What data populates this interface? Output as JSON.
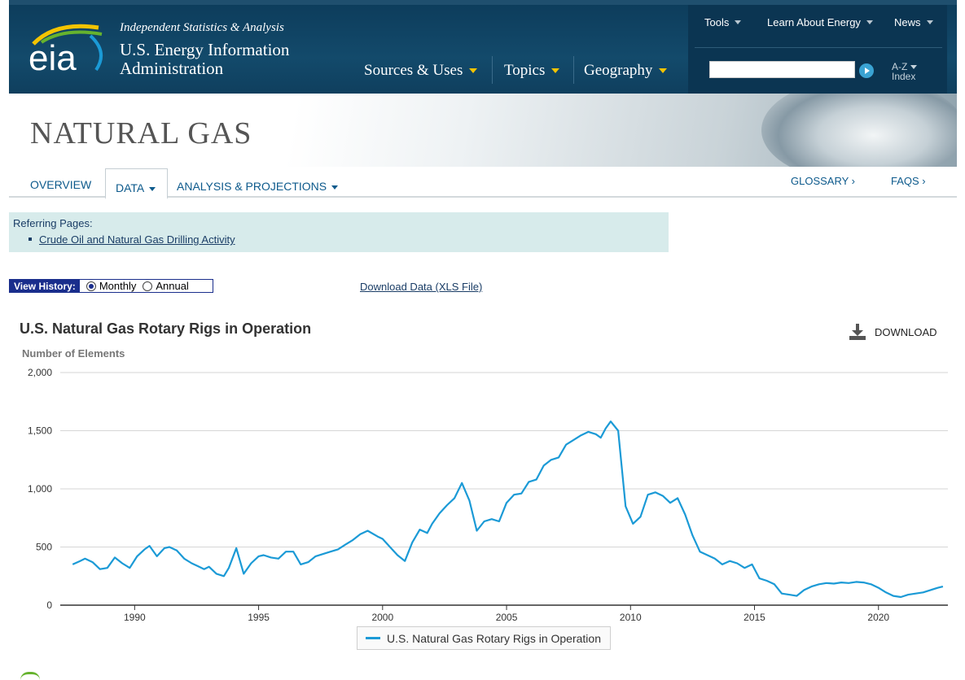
{
  "header": {
    "logo_text": "eia",
    "tagline": "Independent Statistics & Analysis",
    "agency_line1": "U.S. Energy Information",
    "agency_line2": "Administration",
    "main_nav": [
      "Sources & Uses",
      "Topics",
      "Geography"
    ],
    "tool_nav": [
      "Tools",
      "Learn About Energy",
      "News"
    ],
    "search_value": "",
    "az_line1": "A-Z",
    "az_line2": "Index"
  },
  "banner": {
    "title": "NATURAL GAS"
  },
  "subnav": {
    "overview": "OVERVIEW",
    "data": "DATA",
    "analysis": "ANALYSIS & PROJECTIONS",
    "glossary": "GLOSSARY ›",
    "faqs": "FAQS ›"
  },
  "referring": {
    "label": "Referring Pages:",
    "link": "Crude Oil and Natural Gas Drilling Activity"
  },
  "history": {
    "label": "View History:",
    "monthly": "Monthly",
    "annual": "Annual",
    "selected": "Monthly"
  },
  "download_data": "Download Data (XLS File)",
  "download_button": "DOWNLOAD",
  "colors": {
    "header": "#134a6b",
    "line": "#1b9ad6",
    "accent": "#f4c400"
  },
  "chart_data": {
    "type": "line",
    "title": "U.S. Natural Gas Rotary Rigs in Operation",
    "ylabel": "Number of Elements",
    "xlabel": "",
    "ylim": [
      0,
      2000
    ],
    "yticks": [
      0,
      500,
      1000,
      1500,
      2000
    ],
    "ytick_labels": [
      "0",
      "500",
      "1,000",
      "1,500",
      "2,000"
    ],
    "xticks": [
      1990,
      1995,
      2000,
      2005,
      2010,
      2015,
      2020
    ],
    "grid": true,
    "legend_position": "bottom",
    "series": [
      {
        "name": "U.S. Natural Gas Rotary Rigs in Operation",
        "x": [
          1987.5,
          1987.8,
          1988.0,
          1988.3,
          1988.6,
          1988.9,
          1989.2,
          1989.5,
          1989.8,
          1990.1,
          1990.4,
          1990.6,
          1990.9,
          1991.2,
          1991.4,
          1991.7,
          1992.0,
          1992.3,
          1992.6,
          1992.8,
          1993.0,
          1993.3,
          1993.6,
          1993.8,
          1994.1,
          1994.4,
          1994.7,
          1995.0,
          1995.2,
          1995.5,
          1995.8,
          1996.1,
          1996.4,
          1996.7,
          1997.0,
          1997.3,
          1997.6,
          1997.9,
          1998.2,
          1998.5,
          1998.8,
          1999.1,
          1999.4,
          1999.8,
          2000.0,
          2000.3,
          2000.6,
          2000.9,
          2001.2,
          2001.5,
          2001.8,
          2002.0,
          2002.3,
          2002.6,
          2002.9,
          2003.2,
          2003.5,
          2003.8,
          2004.1,
          2004.4,
          2004.7,
          2005.0,
          2005.3,
          2005.6,
          2005.9,
          2006.2,
          2006.5,
          2006.8,
          2007.1,
          2007.4,
          2007.7,
          2008.0,
          2008.3,
          2008.6,
          2008.8,
          2009.0,
          2009.2,
          2009.5,
          2009.8,
          2010.1,
          2010.4,
          2010.7,
          2011.0,
          2011.3,
          2011.6,
          2011.9,
          2012.2,
          2012.5,
          2012.8,
          2013.1,
          2013.4,
          2013.7,
          2014.0,
          2014.3,
          2014.6,
          2014.9,
          2015.2,
          2015.5,
          2015.8,
          2016.1,
          2016.4,
          2016.7,
          2017.0,
          2017.3,
          2017.6,
          2017.9,
          2018.2,
          2018.5,
          2018.8,
          2019.1,
          2019.4,
          2019.7,
          2020.0,
          2020.3,
          2020.6,
          2020.9,
          2021.2,
          2021.5,
          2021.8,
          2022.1,
          2022.4,
          2022.6
        ],
        "values": [
          350,
          380,
          400,
          370,
          310,
          320,
          410,
          360,
          320,
          420,
          480,
          510,
          420,
          490,
          500,
          470,
          400,
          360,
          330,
          310,
          330,
          270,
          250,
          320,
          490,
          270,
          360,
          420,
          430,
          410,
          400,
          460,
          460,
          350,
          370,
          420,
          440,
          460,
          480,
          520,
          560,
          610,
          640,
          590,
          570,
          500,
          430,
          380,
          540,
          650,
          620,
          700,
          790,
          860,
          920,
          1050,
          900,
          640,
          720,
          740,
          720,
          880,
          950,
          960,
          1060,
          1080,
          1200,
          1250,
          1270,
          1380,
          1420,
          1460,
          1490,
          1470,
          1440,
          1520,
          1580,
          1500,
          850,
          700,
          760,
          950,
          970,
          940,
          880,
          920,
          780,
          600,
          460,
          430,
          400,
          350,
          380,
          360,
          320,
          350,
          230,
          210,
          180,
          100,
          90,
          80,
          130,
          160,
          180,
          190,
          185,
          195,
          190,
          200,
          195,
          180,
          150,
          110,
          80,
          70,
          90,
          100,
          110,
          130,
          150,
          160
        ]
      }
    ]
  }
}
